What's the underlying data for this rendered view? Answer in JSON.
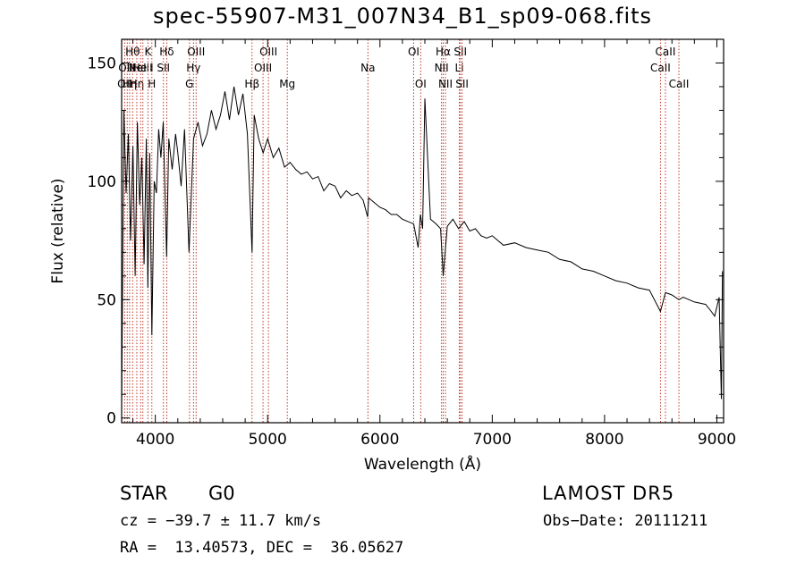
{
  "chart_data": {
    "type": "line",
    "title": "spec-55907-M31_007N34_B1_sp09-068.fits",
    "xlabel": "Wavelength (Å)",
    "ylabel": "Flux (relative)",
    "xlim": [
      3700,
      9060
    ],
    "ylim": [
      -2,
      160
    ],
    "xticks": [
      4000,
      5000,
      6000,
      7000,
      8000,
      9000
    ],
    "yticks": [
      0,
      50,
      100,
      150
    ],
    "grid": false,
    "series": [
      {
        "color": "#000000",
        "x": [
          3700,
          3720,
          3740,
          3760,
          3780,
          3800,
          3820,
          3840,
          3860,
          3880,
          3900,
          3920,
          3933,
          3950,
          3969,
          3990,
          4010,
          4030,
          4050,
          4070,
          4101,
          4120,
          4150,
          4180,
          4200,
          4230,
          4260,
          4300,
          4340,
          4380,
          4420,
          4460,
          4500,
          4540,
          4580,
          4620,
          4660,
          4700,
          4740,
          4780,
          4820,
          4861,
          4880,
          4920,
          4960,
          5000,
          5050,
          5100,
          5150,
          5200,
          5250,
          5300,
          5350,
          5400,
          5450,
          5500,
          5550,
          5600,
          5650,
          5700,
          5750,
          5800,
          5850,
          5890,
          5900,
          5950,
          6000,
          6050,
          6100,
          6150,
          6200,
          6250,
          6300,
          6340,
          6360,
          6380,
          6400,
          6450,
          6500,
          6540,
          6563,
          6600,
          6650,
          6700,
          6750,
          6800,
          6850,
          6900,
          6950,
          7000,
          7100,
          7200,
          7300,
          7400,
          7500,
          7600,
          7700,
          7800,
          7900,
          8000,
          8100,
          8200,
          8300,
          8400,
          8498,
          8542,
          8600,
          8662,
          8700,
          8800,
          8900,
          8950,
          8980,
          9000,
          9020,
          9040,
          9050
        ],
        "values": [
          5,
          130,
          95,
          120,
          75,
          115,
          60,
          125,
          90,
          110,
          65,
          118,
          55,
          112,
          35,
          100,
          95,
          122,
          110,
          125,
          68,
          118,
          105,
          120,
          112,
          98,
          122,
          70,
          118,
          125,
          115,
          120,
          130,
          122,
          128,
          138,
          126,
          140,
          128,
          137,
          120,
          70,
          128,
          118,
          112,
          118,
          110,
          114,
          106,
          108,
          105,
          103,
          104,
          101,
          102,
          96,
          99,
          98,
          93,
          96,
          94,
          95,
          92,
          85,
          93,
          91,
          89,
          88,
          86,
          86,
          84,
          83,
          82,
          72,
          86,
          80,
          135,
          84,
          82,
          80,
          60,
          81,
          84,
          80,
          83,
          79,
          80,
          77,
          76,
          77,
          73,
          74,
          72,
          71,
          70,
          67,
          66,
          63,
          62,
          60,
          58,
          57,
          55,
          54,
          45,
          53,
          52,
          50,
          51,
          49,
          48,
          45,
          43,
          47,
          51,
          8,
          62
        ]
      }
    ],
    "lines": [
      {
        "w": 3727,
        "row": 2,
        "label": "OII"
      },
      {
        "w": 3750,
        "row": 1,
        "label": "OIII"
      },
      {
        "w": 3771,
        "row": 2,
        "label": "Hη"
      },
      {
        "w": 3798,
        "row": 0,
        "label": "Hθ"
      },
      {
        "w": 3835,
        "row": 2,
        "label": "Hη"
      },
      {
        "w": 3869,
        "row": 1,
        "label": "NeIII"
      },
      {
        "w": 3889,
        "row": 1,
        "label": "He I"
      },
      {
        "w": 3934,
        "row": 0,
        "label": "K"
      },
      {
        "w": 3969,
        "row": 2,
        "label": "H"
      },
      {
        "w": 4072,
        "row": 1,
        "label": "SII"
      },
      {
        "w": 4102,
        "row": 0,
        "label": "Hδ"
      },
      {
        "w": 4304,
        "row": 2,
        "label": "G"
      },
      {
        "w": 4340,
        "row": 1,
        "label": "Hγ"
      },
      {
        "w": 4363,
        "row": 0,
        "label": "OIII"
      },
      {
        "w": 4861,
        "row": 2,
        "label": "Hβ"
      },
      {
        "w": 4959,
        "row": 1,
        "label": "OIII"
      },
      {
        "w": 5007,
        "row": 0,
        "label": "OIII"
      },
      {
        "w": 5175,
        "row": 2,
        "label": "Mg"
      },
      {
        "w": 5893,
        "row": 1,
        "label": "Na"
      },
      {
        "w": 6300,
        "row": 0,
        "label": "OI"
      },
      {
        "w": 6363,
        "row": 2,
        "label": "OI"
      },
      {
        "w": 6548,
        "row": 1,
        "label": "NII"
      },
      {
        "w": 6563,
        "row": 0,
        "label": "Hα"
      },
      {
        "w": 6583,
        "row": 2,
        "label": "NII"
      },
      {
        "w": 6707,
        "row": 1,
        "label": "Li"
      },
      {
        "w": 6716,
        "row": 0,
        "label": "SII"
      },
      {
        "w": 6731,
        "row": 2,
        "label": "SII"
      },
      {
        "w": 8498,
        "row": 1,
        "label": "CaII"
      },
      {
        "w": 8542,
        "row": 0,
        "label": "CaII"
      },
      {
        "w": 8662,
        "row": 2,
        "label": "CaII"
      }
    ]
  },
  "info": {
    "class": "STAR",
    "subclass": "G0",
    "survey": "LAMOST DR5",
    "cz": "cz = −39.7 ± 11.7 km/s",
    "obsdate": "Obs−Date: 20111211",
    "radec": "RA =  13.40573, DEC =  36.05627"
  }
}
